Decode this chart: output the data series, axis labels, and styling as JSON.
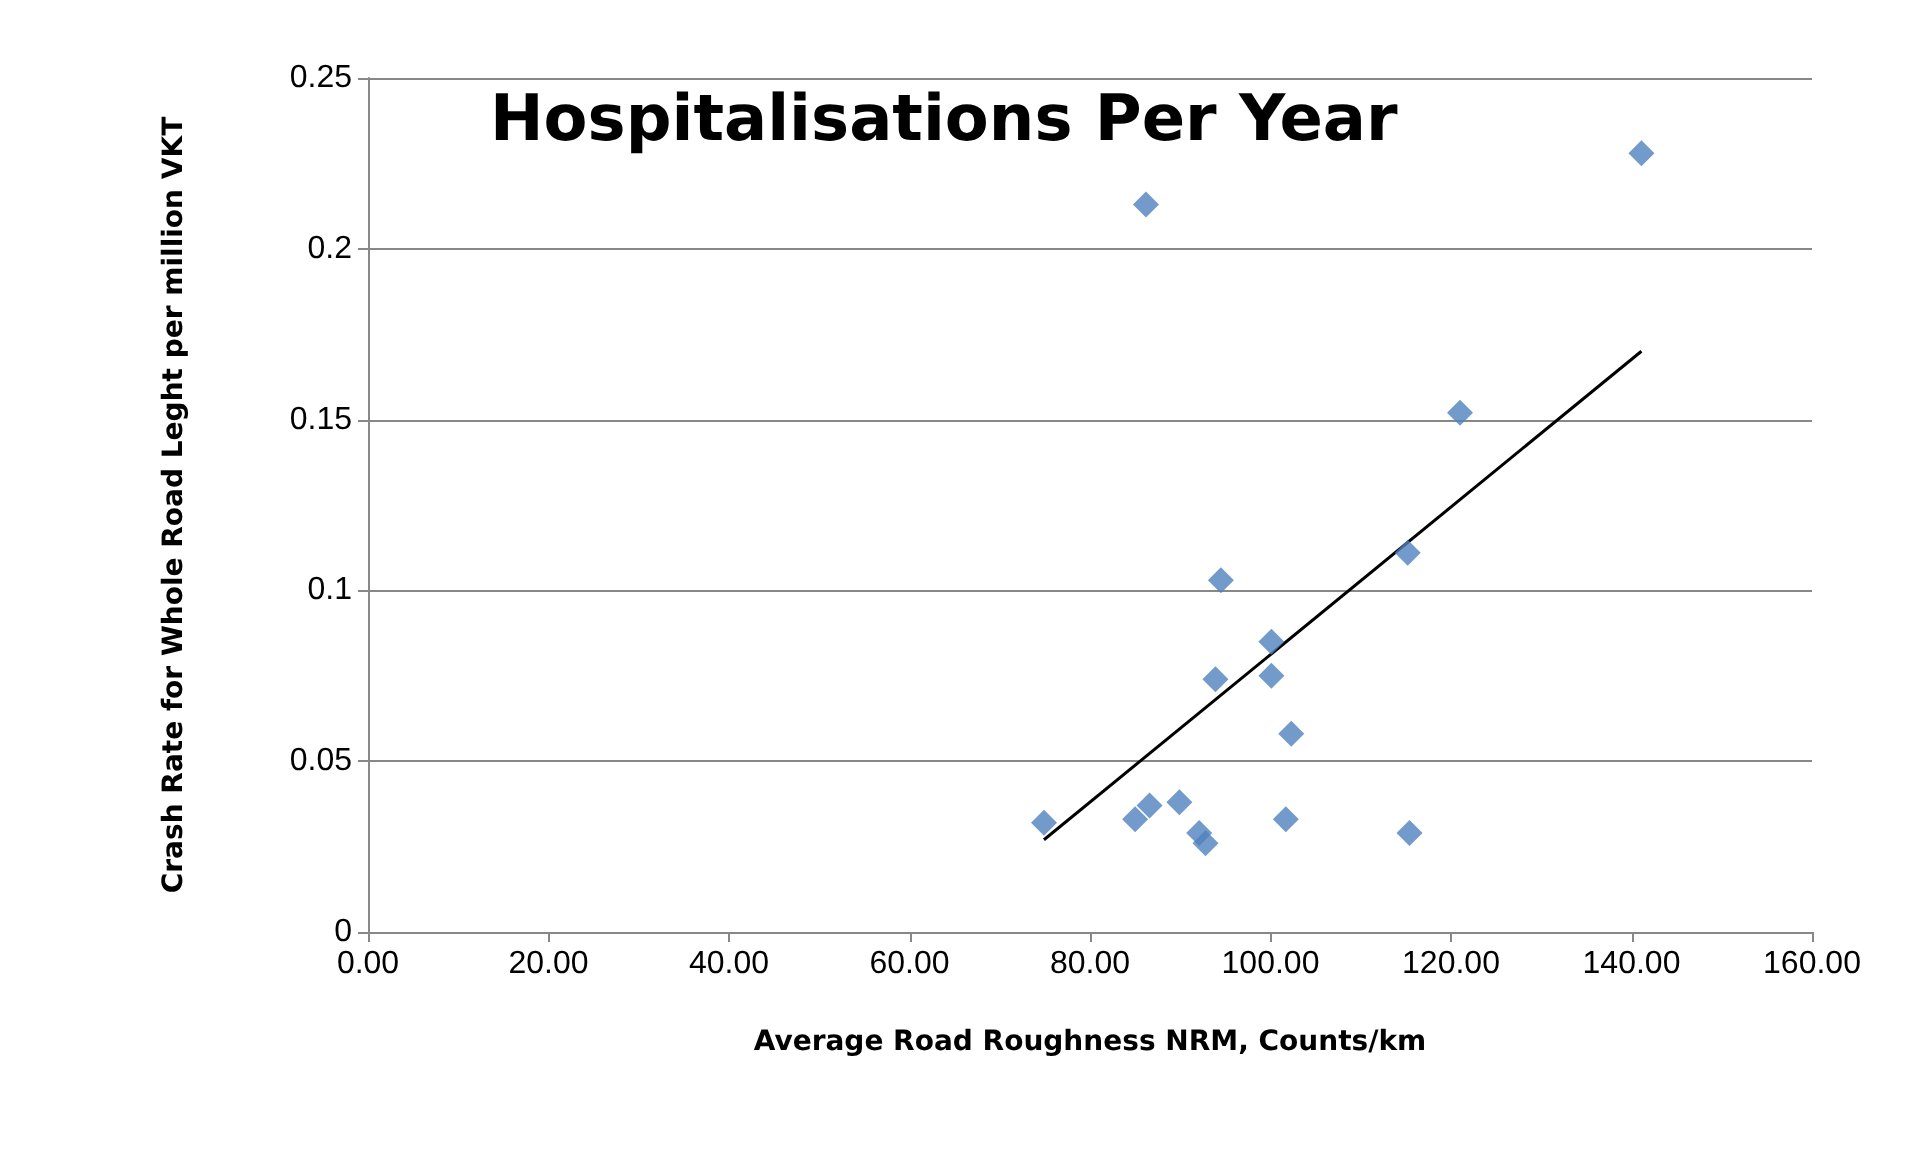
{
  "chart_data": {
    "type": "scatter",
    "title": "Hospitalisations Per Year",
    "xlabel": "Average Road Roughness NRM, Counts/km",
    "ylabel": "Crash Rate for Whole Road Leght per million VKT",
    "xlim": [
      0,
      160
    ],
    "xticks": [
      {
        "value": 0,
        "label": "0.00"
      },
      {
        "value": 20,
        "label": "20.00"
      },
      {
        "value": 40,
        "label": "40.00"
      },
      {
        "value": 60,
        "label": "60.00"
      },
      {
        "value": 80,
        "label": "80.00"
      },
      {
        "value": 100,
        "label": "100.00"
      },
      {
        "value": 120,
        "label": "120.00"
      },
      {
        "value": 140,
        "label": "140.00"
      },
      {
        "value": 160,
        "label": "160.00"
      }
    ],
    "ylim": [
      0,
      0.25
    ],
    "yticks": [
      0,
      0.05,
      0.1,
      0.15,
      0.2,
      0.25
    ],
    "grid": "y",
    "series": [
      {
        "color": "#4f81bd",
        "marker": "diamond",
        "x": [
          74.9,
          86.2,
          141.1,
          121.0,
          115.2,
          94.5,
          100.1,
          93.9,
          100.1,
          102.3,
          89.9,
          86.6,
          85.0,
          92.1,
          92.8,
          101.7,
          115.4
        ],
        "values": [
          0.032,
          0.213,
          0.228,
          0.152,
          0.111,
          0.103,
          0.085,
          0.074,
          0.075,
          0.058,
          0.038,
          0.037,
          0.033,
          0.029,
          0.026,
          0.033,
          0.029
        ]
      },
      {
        "type": "line",
        "color": "#000000",
        "marker": "none",
        "x": [
          74.9,
          141.1
        ],
        "values": [
          0.027,
          0.17
        ]
      }
    ]
  }
}
